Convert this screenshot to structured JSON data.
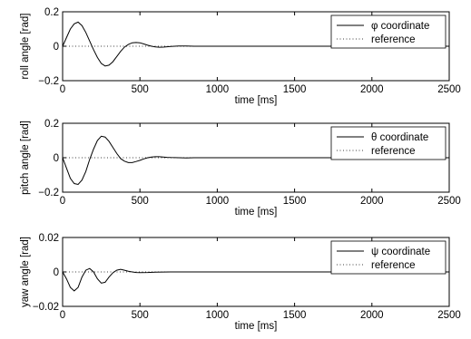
{
  "chart_data": [
    {
      "type": "line",
      "xlabel": "time [ms]",
      "ylabel": "roll angle [rad]",
      "xlim": [
        0,
        2500
      ],
      "ylim": [
        -0.2,
        0.2
      ],
      "xticks": [
        0,
        500,
        1000,
        1500,
        2000,
        2500
      ],
      "xtick_labels": [
        "0",
        "500",
        "1000",
        "1500",
        "2000",
        "2500"
      ],
      "yticks": [
        -0.2,
        0,
        0.2
      ],
      "ytick_labels": [
        "−0.2",
        "0",
        "0.2"
      ],
      "grid": false,
      "legend_position": "top-right",
      "series": [
        {
          "name": "φ coordinate",
          "style": "solid",
          "x": [
            0,
            25,
            50,
            75,
            100,
            125,
            150,
            175,
            200,
            225,
            250,
            275,
            300,
            325,
            350,
            375,
            400,
            425,
            450,
            475,
            500,
            525,
            550,
            575,
            600,
            625,
            650,
            675,
            700,
            750,
            800,
            850,
            900,
            1000,
            1200,
            1500,
            2000,
            2500
          ],
          "y": [
            0,
            0.05,
            0.1,
            0.13,
            0.14,
            0.12,
            0.08,
            0.03,
            -0.02,
            -0.065,
            -0.1,
            -0.115,
            -0.11,
            -0.09,
            -0.06,
            -0.03,
            -0.005,
            0.01,
            0.02,
            0.022,
            0.02,
            0.013,
            0.006,
            0,
            -0.004,
            -0.006,
            -0.005,
            -0.003,
            -0.001,
            0.001,
            0.001,
            0,
            0,
            0,
            0,
            0,
            0,
            0
          ]
        },
        {
          "name": "reference",
          "style": "dotted",
          "x": [
            0,
            2500
          ],
          "y": [
            0,
            0
          ]
        }
      ]
    },
    {
      "type": "line",
      "xlabel": "time [ms]",
      "ylabel": "pitch angle [rad]",
      "xlim": [
        0,
        2500
      ],
      "ylim": [
        -0.2,
        0.2
      ],
      "xticks": [
        0,
        500,
        1000,
        1500,
        2000,
        2500
      ],
      "xtick_labels": [
        "0",
        "500",
        "1000",
        "1500",
        "2000",
        "2500"
      ],
      "yticks": [
        -0.2,
        0,
        0.2
      ],
      "ytick_labels": [
        "−0.2",
        "0",
        "0.2"
      ],
      "grid": false,
      "legend_position": "top-right",
      "series": [
        {
          "name": "θ coordinate",
          "style": "solid",
          "x": [
            0,
            25,
            50,
            75,
            100,
            125,
            150,
            175,
            200,
            225,
            250,
            275,
            300,
            325,
            350,
            375,
            400,
            425,
            450,
            475,
            500,
            525,
            550,
            575,
            600,
            625,
            650,
            675,
            700,
            750,
            800,
            850,
            900,
            1000,
            1200,
            1500,
            2000,
            2500
          ],
          "y": [
            0,
            -0.06,
            -0.12,
            -0.15,
            -0.155,
            -0.13,
            -0.08,
            -0.01,
            0.05,
            0.1,
            0.125,
            0.12,
            0.095,
            0.06,
            0.025,
            -0.005,
            -0.02,
            -0.028,
            -0.028,
            -0.022,
            -0.015,
            -0.007,
            0,
            0.004,
            0.006,
            0.006,
            0.004,
            0.002,
            0.001,
            0,
            -0.001,
            0,
            0,
            0,
            0,
            0,
            0,
            0
          ]
        },
        {
          "name": "reference",
          "style": "dotted",
          "x": [
            0,
            2500
          ],
          "y": [
            0,
            0
          ]
        }
      ]
    },
    {
      "type": "line",
      "xlabel": "time [ms]",
      "ylabel": "yaw angle [rad]",
      "xlim": [
        0,
        2500
      ],
      "ylim": [
        -0.02,
        0.02
      ],
      "xticks": [
        0,
        500,
        1000,
        1500,
        2000,
        2500
      ],
      "xtick_labels": [
        "0",
        "500",
        "1000",
        "1500",
        "2000",
        "2500"
      ],
      "yticks": [
        -0.02,
        0,
        0.02
      ],
      "ytick_labels": [
        "−0.02",
        "0",
        "0.02"
      ],
      "grid": false,
      "legend_position": "top-right",
      "series": [
        {
          "name": "ψ coordinate",
          "style": "solid",
          "x": [
            0,
            25,
            50,
            75,
            100,
            125,
            150,
            175,
            200,
            225,
            250,
            275,
            300,
            325,
            350,
            375,
            400,
            425,
            450,
            475,
            500,
            550,
            600,
            700,
            800,
            1000,
            1500,
            2000,
            2500
          ],
          "y": [
            0,
            -0.004,
            -0.009,
            -0.011,
            -0.009,
            -0.003,
            0.001,
            0.002,
            0,
            -0.004,
            -0.0065,
            -0.006,
            -0.003,
            -0.0005,
            0.001,
            0.0015,
            0.001,
            0.0004,
            0,
            -0.0003,
            -0.0004,
            -0.0003,
            -0.0001,
            0,
            0,
            0,
            0,
            0,
            0
          ]
        },
        {
          "name": "reference",
          "style": "dotted",
          "x": [
            0,
            2500
          ],
          "y": [
            0,
            0
          ]
        }
      ]
    }
  ]
}
